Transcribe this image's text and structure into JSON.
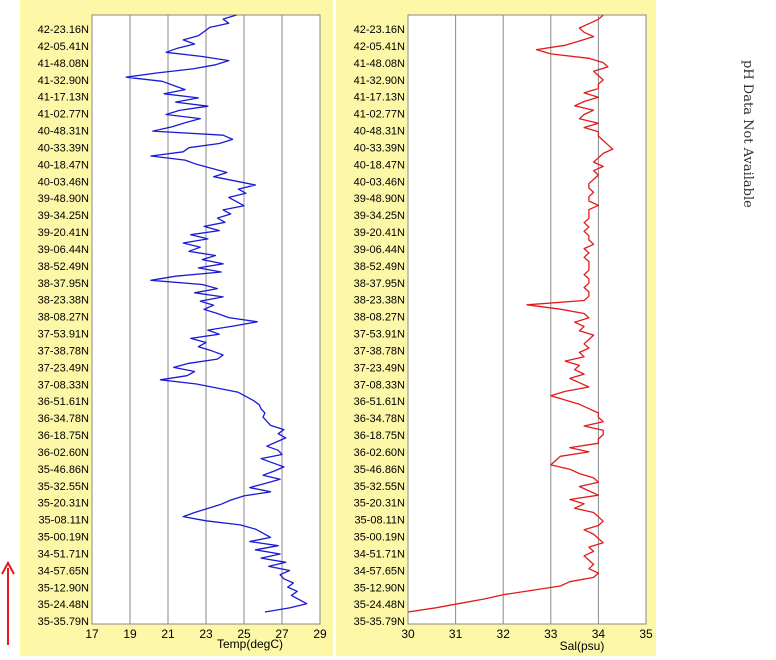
{
  "note": "pH Data Not Available",
  "latitudes": [
    "42-23.16N",
    "42-05.41N",
    "41-48.08N",
    "41-32.90N",
    "41-17.13N",
    "41-02.77N",
    "40-48.31N",
    "40-33.39N",
    "40-18.47N",
    "40-03.46N",
    "39-48.90N",
    "39-34.25N",
    "39-20.41N",
    "39-06.44N",
    "38-52.49N",
    "38-37.95N",
    "38-23.38N",
    "38-08.27N",
    "37-53.91N",
    "37-38.78N",
    "37-23.49N",
    "37-08.33N",
    "36-51.61N",
    "36-34.78N",
    "36-18.75N",
    "36-02.60N",
    "35-46.86N",
    "35-32.55N",
    "35-20.31N",
    "35-08.11N",
    "35-00.19N",
    "34-51.71N",
    "34-57.65N",
    "35-12.90N",
    "35-24.48N",
    "35-35.79N"
  ],
  "colors": {
    "panel_bg": "#fdf7a8",
    "temp_line": "#1a1ad6",
    "sal_line": "#e41a1a",
    "arrow": "#e41a1a",
    "grid": "#8a8a8a"
  },
  "chart_data": [
    {
      "type": "line",
      "xlabel": "Temp(degC)",
      "xlim": [
        17,
        29
      ],
      "xticks": [
        17,
        19,
        21,
        23,
        25,
        27,
        29
      ],
      "grid": true,
      "series": [
        {
          "values": [
            24.6,
            23.9,
            24.2,
            23.2,
            22.9,
            22.6,
            21.8,
            22.4,
            21.5,
            20.9,
            22.8,
            24.2,
            23.5,
            22.3,
            20.4,
            18.8,
            20.7,
            21.3,
            21.9,
            20.8,
            22.6,
            21.4,
            23.1,
            21.6,
            20.9,
            22.7,
            21.9,
            21.2,
            20.2,
            23.9,
            24.4,
            23.7,
            22.1,
            21.8,
            20.1,
            21.9,
            22.5,
            23.3,
            24.1,
            23.4,
            24.5,
            25.6,
            24.7,
            25.1,
            24.2,
            24.6,
            25.0,
            23.9,
            24.3,
            23.6,
            24.0,
            22.9,
            23.7,
            22.2,
            23.1,
            21.8,
            22.7,
            22.1,
            23.5,
            22.8,
            23.9,
            22.6,
            23.8,
            21.4,
            20.1,
            22.8,
            23.6,
            22.4,
            23.9,
            22.7,
            23.4,
            22.9,
            23.6,
            24.2,
            25.7,
            24.5,
            23.1,
            23.7,
            22.2,
            23.0,
            22.6,
            23.3,
            23.9,
            23.6,
            22.1,
            21.3,
            22.4,
            22.0,
            20.6,
            22.5,
            23.6,
            24.7,
            25.1,
            25.5,
            25.8,
            25.9,
            26.1,
            26.0,
            26.2,
            26.4,
            27.1,
            26.8,
            27.2,
            26.7,
            26.2,
            26.8,
            27.0,
            25.9,
            26.5,
            27.1,
            26.6,
            26.0,
            26.9,
            26.1,
            25.3,
            26.4,
            25.0,
            24.3,
            23.8,
            23.1,
            22.4,
            21.8,
            23.0,
            24.8,
            25.6,
            26.0,
            26.4,
            25.3,
            26.8,
            25.6,
            26.9,
            25.9,
            27.2,
            26.3,
            27.4,
            26.9,
            27.1,
            27.6,
            27.3,
            27.8,
            27.5,
            27.9,
            28.3,
            27.4,
            26.1
          ]
        }
      ]
    },
    {
      "type": "line",
      "xlabel": "Sal(psu)",
      "xlim": [
        30,
        35
      ],
      "xticks": [
        30,
        31,
        32,
        33,
        34,
        35
      ],
      "grid": true,
      "series": [
        {
          "values": [
            34.1,
            34.0,
            33.8,
            33.6,
            33.7,
            33.9,
            33.6,
            33.3,
            32.7,
            33.0,
            33.8,
            34.1,
            34.2,
            33.9,
            34.0,
            34.1,
            34.0,
            34.0,
            33.7,
            34.0,
            33.7,
            33.5,
            33.9,
            33.7,
            33.6,
            34.0,
            33.7,
            34.0,
            34.0,
            34.1,
            34.2,
            34.3,
            34.1,
            34.0,
            33.9,
            34.1,
            33.9,
            34.0,
            33.9,
            33.8,
            33.8,
            33.9,
            33.8,
            33.8,
            34.0,
            33.8,
            33.8,
            33.8,
            33.7,
            33.8,
            33.7,
            33.8,
            33.8,
            33.9,
            33.7,
            33.8,
            33.7,
            33.8,
            33.8,
            33.8,
            33.7,
            33.8,
            33.8,
            33.7,
            33.8,
            33.8,
            33.7,
            32.5,
            33.2,
            33.7,
            33.8,
            33.5,
            33.7,
            33.6,
            33.9,
            33.8,
            33.7,
            33.8,
            33.6,
            33.7,
            33.3,
            33.6,
            33.5,
            33.7,
            33.4,
            33.6,
            33.8,
            33.3,
            33.0,
            33.3,
            33.6,
            33.8,
            34.0,
            34.0,
            34.1,
            33.7,
            34.1,
            34.1,
            34.0,
            34.0,
            33.4,
            33.8,
            33.2,
            33.1,
            33.0,
            33.4,
            33.6,
            33.9,
            34.0,
            33.6,
            33.8,
            34.0,
            33.4,
            33.7,
            33.5,
            33.9,
            34.0,
            34.1,
            34.0,
            33.7,
            33.9,
            34.0,
            34.1,
            33.8,
            33.9,
            33.7,
            33.8,
            33.9,
            33.8,
            34.0,
            33.9,
            33.4,
            33.2,
            32.6,
            32.0,
            31.6,
            31.1,
            30.6,
            30.0
          ]
        }
      ]
    }
  ]
}
